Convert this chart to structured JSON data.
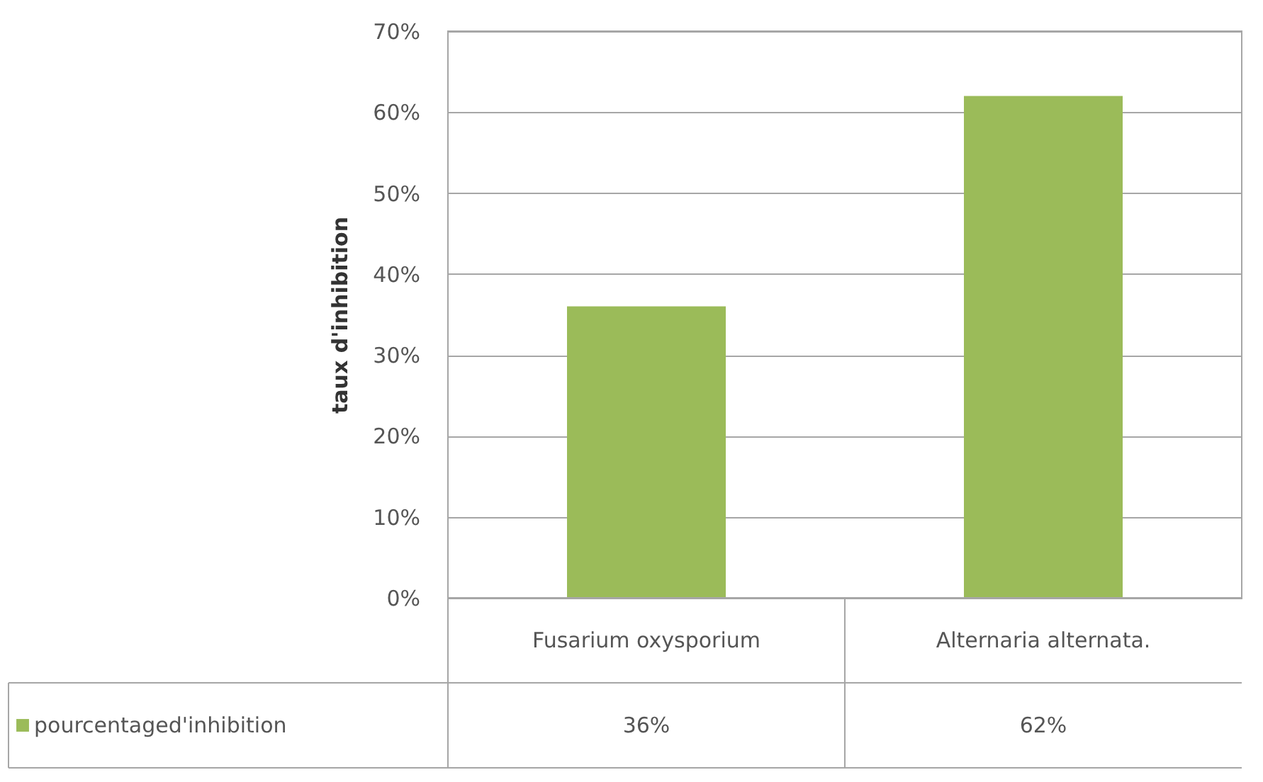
{
  "chart_data": {
    "type": "bar",
    "ylabel": "taux d'inhibition",
    "categories": [
      "Fusarium oxysporium",
      "Alternaria alternata."
    ],
    "series": [
      {
        "name": "pourcentaged'inhibition",
        "color": "#9bbb59",
        "values": [
          36,
          62
        ],
        "value_labels": [
          "36%",
          "62%"
        ]
      }
    ],
    "ylim": [
      0,
      70
    ],
    "yticks": [
      {
        "value": 0,
        "label": "0%"
      },
      {
        "value": 10,
        "label": "10%"
      },
      {
        "value": 20,
        "label": "20%"
      },
      {
        "value": 30,
        "label": "30%"
      },
      {
        "value": 40,
        "label": "40%"
      },
      {
        "value": 50,
        "label": "50%"
      },
      {
        "value": 60,
        "label": "60%"
      },
      {
        "value": 70,
        "label": "70%"
      }
    ],
    "grid": "y",
    "legend": "bottom"
  }
}
